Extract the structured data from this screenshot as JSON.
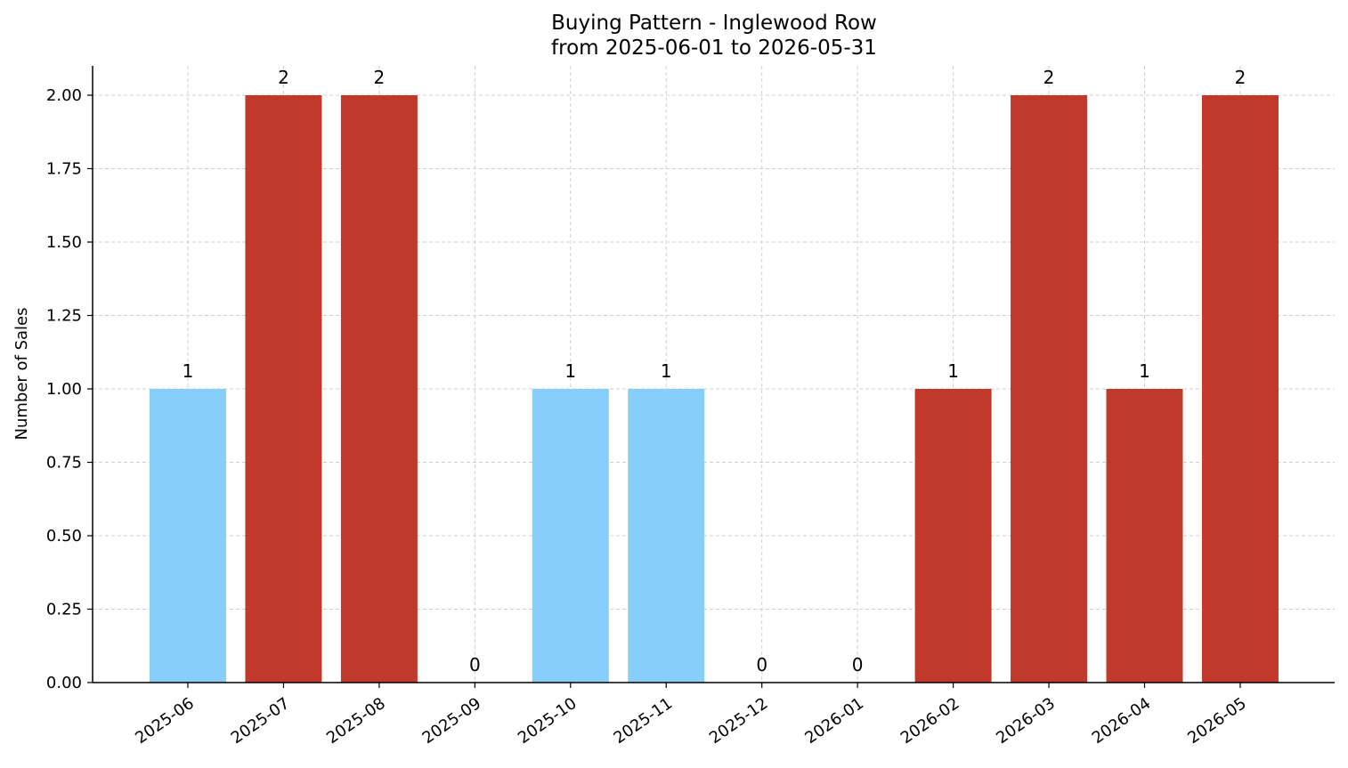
{
  "chart_data": {
    "type": "bar",
    "title": "Buying Pattern - Inglewood Row",
    "subtitle": "from 2025-06-01 to 2026-05-31",
    "xlabel": "",
    "ylabel": "Number of Sales",
    "ylim": [
      0,
      2.1
    ],
    "yticks": [
      "0.00",
      "0.25",
      "0.50",
      "0.75",
      "1.00",
      "1.25",
      "1.50",
      "1.75",
      "2.00"
    ],
    "categories": [
      "2025-06",
      "2025-07",
      "2025-08",
      "2025-09",
      "2025-10",
      "2025-11",
      "2025-12",
      "2026-01",
      "2026-02",
      "2026-03",
      "2026-04",
      "2026-05"
    ],
    "values": [
      1,
      2,
      2,
      0,
      1,
      1,
      0,
      0,
      1,
      2,
      1,
      2
    ],
    "bar_colors": [
      "#87CEFA",
      "#C0392B",
      "#C0392B",
      "#C0392B",
      "#87CEFA",
      "#87CEFA",
      "#C0392B",
      "#C0392B",
      "#C0392B",
      "#C0392B",
      "#C0392B",
      "#C0392B"
    ],
    "grid": true,
    "legend": "none"
  }
}
